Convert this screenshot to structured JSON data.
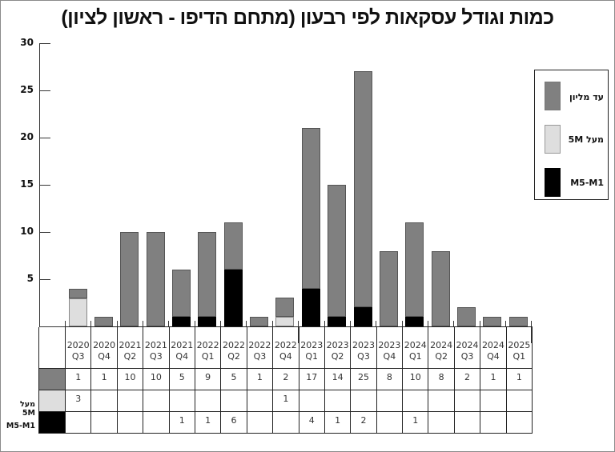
{
  "title": "כמות וגודל עסקאות לפי רבעון (מתחם הדיפו - ראשון לציון)",
  "colors": {
    "up_to_million": "#808080",
    "above_5m": "#dedede",
    "m1_m5": "#000000"
  },
  "legend": {
    "items": [
      {
        "label": "עד מליון",
        "color": "#808080"
      },
      {
        "label": "מעל 5M",
        "color": "#dedede"
      },
      {
        "label": "M5-M1",
        "color": "#000000"
      }
    ]
  },
  "y_axis": {
    "ticks": [
      "30",
      "25",
      "20",
      "15",
      "10",
      "5"
    ]
  },
  "table": {
    "row_labels": [
      "",
      "מעל 5M",
      "M5-M1"
    ],
    "columns": [
      {
        "year": "2020",
        "q": "Q3"
      },
      {
        "year": "2020",
        "q": "Q4"
      },
      {
        "year": "2021",
        "q": "Q2"
      },
      {
        "year": "2021",
        "q": "Q3"
      },
      {
        "year": "2021",
        "q": "Q4"
      },
      {
        "year": "2022",
        "q": "Q1"
      },
      {
        "year": "2022",
        "q": "Q2"
      },
      {
        "year": "2022",
        "q": "Q3"
      },
      {
        "year": "2022",
        "q": "Q4"
      },
      {
        "year": "2023",
        "q": "Q1"
      },
      {
        "year": "2023",
        "q": "Q2"
      },
      {
        "year": "2023",
        "q": "Q3"
      },
      {
        "year": "2023",
        "q": "Q4"
      },
      {
        "year": "2024",
        "q": "Q1"
      },
      {
        "year": "2024",
        "q": "Q2"
      },
      {
        "year": "2024",
        "q": "Q3"
      },
      {
        "year": "2024",
        "q": "Q4"
      },
      {
        "year": "2025",
        "q": "Q1"
      }
    ],
    "rows": [
      [
        "1",
        "1",
        "10",
        "10",
        "5",
        "9",
        "5",
        "1",
        "2",
        "17",
        "14",
        "25",
        "8",
        "10",
        "8",
        "2",
        "1",
        "1"
      ],
      [
        "3",
        "",
        "",
        "",
        "",
        "",
        "",
        "",
        "1",
        "",
        "",
        "",
        "",
        "",
        "",
        "",
        "",
        ""
      ],
      [
        "",
        "",
        "",
        "",
        "1",
        "1",
        "6",
        "",
        "",
        "4",
        "1",
        "2",
        "",
        "1",
        "",
        "",
        "",
        ""
      ]
    ]
  },
  "chart_data": {
    "type": "bar",
    "stacked": true,
    "title": "כמות וגודל עסקאות לפי רבעון (מתחם הדיפו - ראשון לציון)",
    "xlabel": "",
    "ylabel": "",
    "ylim": [
      0,
      30
    ],
    "yticks": [
      5,
      10,
      15,
      20,
      25,
      30
    ],
    "grid": false,
    "legend_position": "right",
    "categories": [
      "2020 Q3",
      "2020 Q4",
      "2021 Q2",
      "2021 Q3",
      "2021 Q4",
      "2022 Q1",
      "2022 Q2",
      "2022 Q3",
      "2022 Q4",
      "2023 Q1",
      "2023 Q2",
      "2023 Q3",
      "2023 Q4",
      "2024 Q1",
      "2024 Q2",
      "2024 Q3",
      "2024 Q4",
      "2025 Q1"
    ],
    "series": [
      {
        "name": "M5-M1",
        "color": "#000000",
        "values": [
          0,
          0,
          0,
          0,
          1,
          1,
          6,
          0,
          0,
          4,
          1,
          2,
          0,
          1,
          0,
          0,
          0,
          0
        ]
      },
      {
        "name": "מעל 5M",
        "color": "#dedede",
        "values": [
          3,
          0,
          0,
          0,
          0,
          0,
          0,
          0,
          1,
          0,
          0,
          0,
          0,
          0,
          0,
          0,
          0,
          0
        ]
      },
      {
        "name": "עד מליון",
        "color": "#808080",
        "values": [
          1,
          1,
          10,
          10,
          5,
          9,
          5,
          1,
          2,
          17,
          14,
          25,
          8,
          10,
          8,
          2,
          1,
          1
        ]
      }
    ],
    "totals": [
      4,
      1,
      10,
      10,
      6,
      10,
      11,
      1,
      3,
      21,
      15,
      27,
      8,
      11,
      8,
      2,
      1,
      1
    ]
  }
}
